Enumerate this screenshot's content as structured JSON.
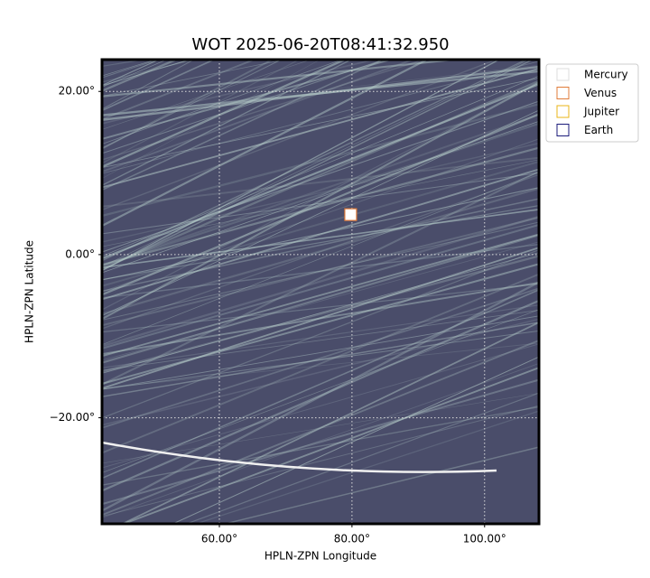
{
  "chart_data": {
    "type": "image",
    "title": "WOT 2025-06-20T08:41:32.950",
    "x_label": "HPLN-ZPN Longitude",
    "y_label": "HPLN-ZPN Latitude",
    "xlim": [
      42.3,
      108.2
    ],
    "ylim": [
      -33.0,
      23.9
    ],
    "xticks": [
      {
        "value": 60,
        "label": "60.00°"
      },
      {
        "value": 80,
        "label": "80.00°"
      },
      {
        "value": 100,
        "label": "100.00°"
      }
    ],
    "yticks": [
      {
        "value": -20,
        "label": "−20.00°"
      },
      {
        "value": 0,
        "label": "0.00°"
      },
      {
        "value": 20,
        "label": "20.00°"
      }
    ],
    "grid": true,
    "legend": "upper right",
    "series": [
      {
        "name": "Mercury",
        "color": "#ffffff",
        "x": [
          79.8
        ],
        "y": [
          4.9
        ]
      },
      {
        "name": "Venus",
        "color": "#e07b39",
        "x": [
          79.8
        ],
        "y": [
          4.9
        ]
      },
      {
        "name": "Jupiter",
        "color": "#e8b417",
        "x": [
          null
        ],
        "y": [
          null
        ]
      },
      {
        "name": "Earth",
        "color": "#1a1a7a",
        "x": [
          null
        ],
        "y": [
          null
        ]
      }
    ]
  }
}
